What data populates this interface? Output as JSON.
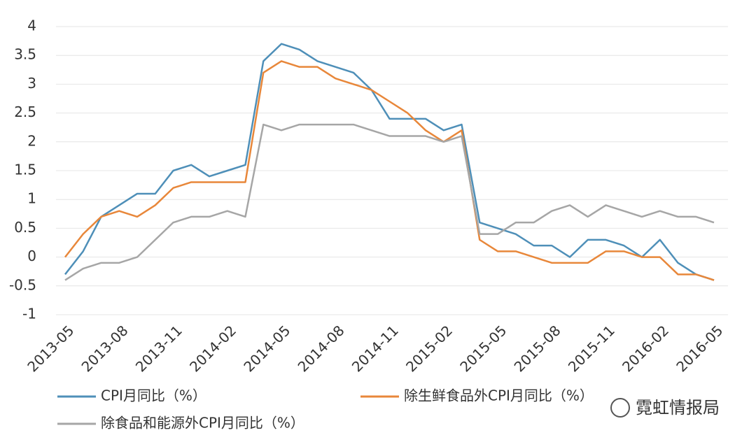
{
  "chart_data": {
    "type": "line",
    "categories": [
      "2013-05",
      null,
      null,
      "2013-08",
      null,
      null,
      "2013-11",
      null,
      null,
      "2014-02",
      null,
      null,
      "2014-05",
      null,
      null,
      "2014-08",
      null,
      null,
      "2014-11",
      null,
      null,
      "2015-02",
      null,
      null,
      "2015-05",
      null,
      null,
      "2015-08",
      null,
      null,
      "2015-11",
      null,
      null,
      "2016-02",
      null,
      null,
      "2016-05"
    ],
    "series": [
      {
        "name": "CPI月同比（%）",
        "color": "#4e8fb8",
        "values": [
          -0.3,
          0.1,
          0.7,
          0.9,
          1.1,
          1.1,
          1.5,
          1.6,
          1.4,
          1.5,
          1.6,
          3.4,
          3.7,
          3.6,
          3.4,
          3.3,
          3.2,
          2.9,
          2.4,
          2.4,
          2.4,
          2.2,
          2.3,
          0.6,
          0.5,
          0.4,
          0.2,
          0.2,
          0.0,
          0.3,
          0.3,
          0.2,
          0.0,
          0.3,
          -0.1,
          -0.3,
          -0.4
        ]
      },
      {
        "name": "除生鲜食品外CPI月同比（%）",
        "color": "#e8873a",
        "values": [
          0.0,
          0.4,
          0.7,
          0.8,
          0.7,
          0.9,
          1.2,
          1.3,
          1.3,
          1.3,
          1.3,
          3.2,
          3.4,
          3.3,
          3.3,
          3.1,
          3.0,
          2.9,
          2.7,
          2.5,
          2.2,
          2.0,
          2.2,
          0.3,
          0.1,
          0.1,
          0.0,
          -0.1,
          -0.1,
          -0.1,
          0.1,
          0.1,
          0.0,
          0.0,
          -0.3,
          -0.3,
          -0.4
        ]
      },
      {
        "name": "除食品和能源外CPI月同比（%）",
        "color": "#a6a6a6",
        "values": [
          -0.4,
          -0.2,
          -0.1,
          -0.1,
          0.0,
          0.3,
          0.6,
          0.7,
          0.7,
          0.8,
          0.7,
          2.3,
          2.2,
          2.3,
          2.3,
          2.3,
          2.3,
          2.2,
          2.1,
          2.1,
          2.1,
          2.0,
          2.1,
          0.4,
          0.4,
          0.6,
          0.6,
          0.8,
          0.9,
          0.7,
          0.9,
          0.8,
          0.7,
          0.8,
          0.7,
          0.7,
          0.6
        ]
      }
    ],
    "ylim": [
      -1,
      4
    ],
    "yticks": [
      -1,
      -0.5,
      0,
      0.5,
      1,
      1.5,
      2,
      2.5,
      3,
      3.5,
      4
    ],
    "grid": true,
    "watermark": "霓虹情报局"
  }
}
